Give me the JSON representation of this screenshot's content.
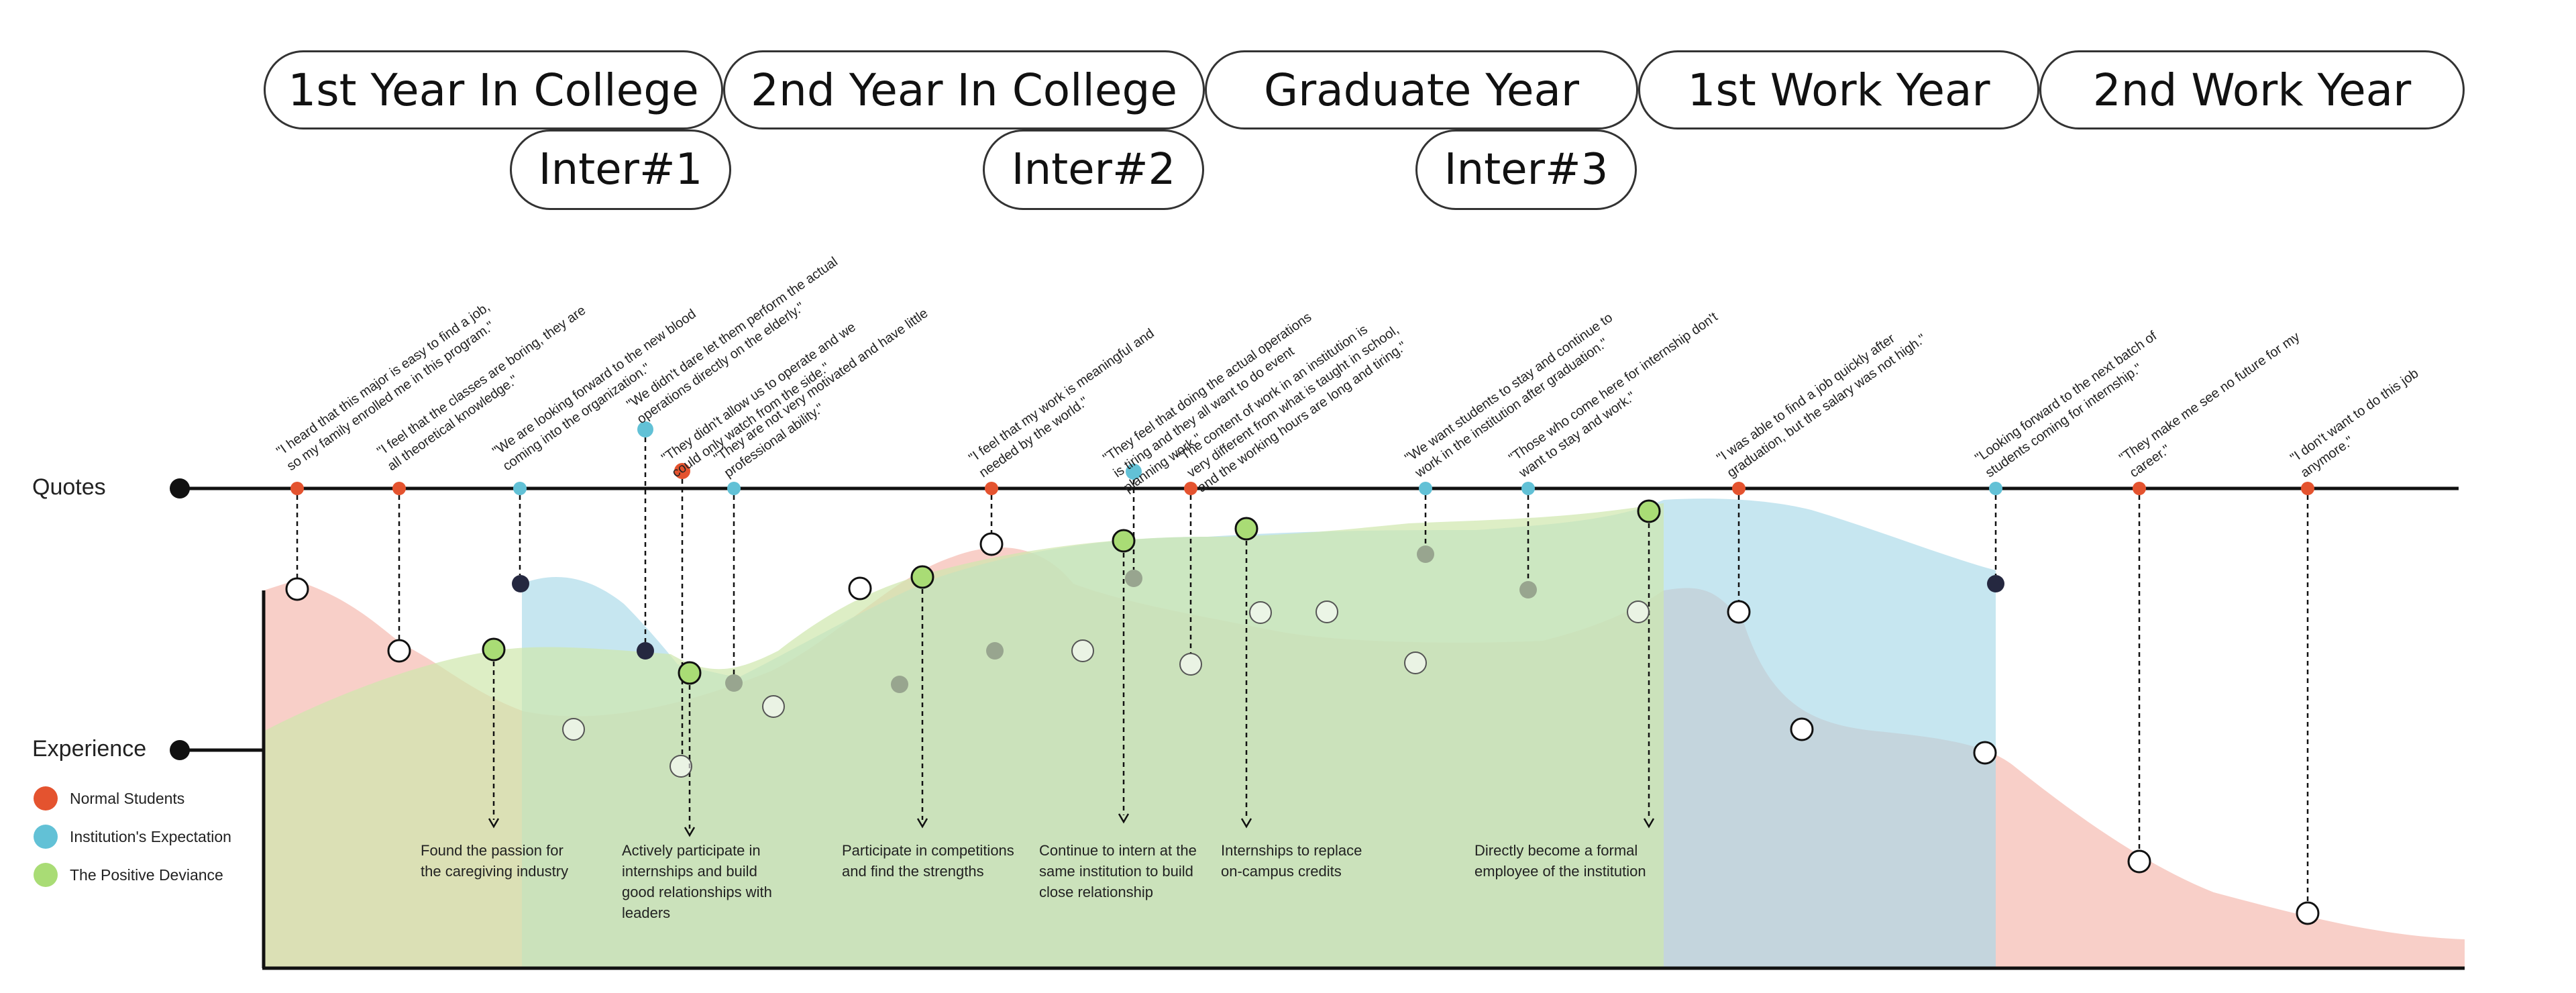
{
  "stages": [
    "1st Year In College",
    "2nd Year In College",
    "Graduate Year",
    "1st Work Year",
    "2nd Work Year"
  ],
  "interviews": [
    "Inter#1",
    "Inter#2",
    "Inter#3"
  ],
  "row_labels": {
    "quotes": "Quotes",
    "experience": "Experience"
  },
  "legend": [
    {
      "label": "Normal Students",
      "color": "#e4532f"
    },
    {
      "label": "Institution's Expectation",
      "color": "#62c1d6"
    },
    {
      "label": "The Positive Deviance",
      "color": "#a9dc75"
    }
  ],
  "quotes": [
    {
      "group": "normal",
      "lines": [
        "\"I heard that this major is easy to find a job,",
        "so my family enrolled me in this program.\""
      ]
    },
    {
      "group": "normal",
      "lines": [
        "\"I feel that the classes are boring, they are",
        "all theoretical knowledge.\""
      ]
    },
    {
      "group": "institution",
      "lines": [
        "\"We are looking forward to the new blood",
        "coming into the organization.\""
      ]
    },
    {
      "group": "institution",
      "lines": [
        "\"We didn't dare let them perform the actual",
        "operations directly on the elderly.\""
      ]
    },
    {
      "group": "normal",
      "lines": [
        "\"They didn't allow us to operate and we",
        "could only watch from the side.\""
      ]
    },
    {
      "group": "institution",
      "lines": [
        "\"They are not very motivated and have little",
        "professional ability.\""
      ]
    },
    {
      "group": "normal",
      "lines": [
        "\"I feel that my work is meaningful and",
        "needed by the world.\""
      ]
    },
    {
      "group": "institution",
      "lines": [
        "\"They feel that doing the actual operations",
        "is tiring and they all want to do event",
        "planning work.\""
      ]
    },
    {
      "group": "normal",
      "lines": [
        "\"The content of work in an institution is",
        "very different from what is taught in school,",
        "and the working hours are long and tiring.\""
      ]
    },
    {
      "group": "institution",
      "lines": [
        "\"We want students to stay and continue to",
        "work in the institution after graduation.\""
      ]
    },
    {
      "group": "institution",
      "lines": [
        "\"Those who come here for internship don't",
        "want to stay and work.\""
      ]
    },
    {
      "group": "normal",
      "lines": [
        "\"I was able to find a job quickly after",
        "graduation, but the salary was not high.\""
      ]
    },
    {
      "group": "institution",
      "lines": [
        "\"Looking forward to the next batch of",
        "students coming for internship.\""
      ]
    },
    {
      "group": "normal",
      "lines": [
        "\"They make me see no future for my",
        "career.\""
      ]
    },
    {
      "group": "normal",
      "lines": [
        "\"I don't want to do this job",
        "anymore.\""
      ]
    }
  ],
  "annotations": [
    "Found the passion for\nthe caregiving industry",
    "Actively participate in\ninternships and build\ngood relationships with\nleaders",
    "Participate in competitions\nand find the strengths",
    "Continue to intern at the\nsame institution to build\nclose relationship",
    "Internships to replace\non-campus credits",
    "Directly become a formal\nemployee of the institution"
  ],
  "colors": {
    "normal": "#e4532f",
    "institution": "#62c1d6",
    "deviance": "#a9dc75",
    "normal_fill": "#f3a89a",
    "institution_fill": "#a7d9e8",
    "deviance_fill": "#cfe7ad",
    "dark_point": "#252840",
    "gray_point": "#98a58f"
  }
}
